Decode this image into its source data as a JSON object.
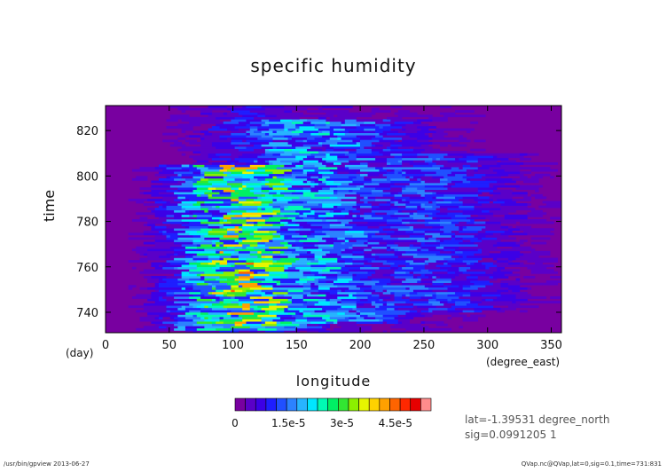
{
  "chart_data": {
    "type": "heatmap",
    "title": "specific humidity",
    "xlabel": "longitude",
    "ylabel": "time",
    "x_unit": "(degree_east)",
    "y_unit": "(day)",
    "xlim": [
      0,
      358
    ],
    "ylim": [
      731,
      831
    ],
    "x_ticks": [
      0,
      50,
      100,
      150,
      200,
      250,
      300,
      350
    ],
    "y_ticks": [
      740,
      760,
      780,
      800,
      820
    ],
    "colorbar": {
      "ticks": [
        "0",
        "1.5e-5",
        "3e-5",
        "4.5e-5"
      ],
      "tick_values": [
        0,
        1.5e-05,
        3e-05,
        4.5e-05
      ],
      "vmin": 0,
      "vmax": 5.5e-05,
      "colors": [
        "#7800a0",
        "#5a00c8",
        "#3c00e6",
        "#1e1eff",
        "#2050ff",
        "#2c82ff",
        "#28b4ff",
        "#00e6ff",
        "#00fab4",
        "#00f064",
        "#32e632",
        "#8cf000",
        "#e6f500",
        "#ffd200",
        "#ffa000",
        "#ff6400",
        "#ff2800",
        "#e60000",
        "#ff8c8c"
      ]
    },
    "background_level": 0,
    "description_of_field": [
      {
        "lon_center": 105,
        "lon_width": 75,
        "time_range": [
          732,
          805
        ],
        "peak": 3.2e-05
      },
      {
        "lon_center": 160,
        "lon_width": 110,
        "time_range": [
          735,
          825
        ],
        "peak": 1.8e-05
      },
      {
        "lon_center": 240,
        "lon_width": 120,
        "time_range": [
          740,
          810
        ],
        "peak": 1.2e-05
      }
    ]
  },
  "info": {
    "lat": "lat=-1.39531 degree_north",
    "sig": "sig=0.0991205 1"
  },
  "footer": {
    "left": "/usr/bin/gpview  2013-06-27",
    "right": "QVap.nc@QVap,lat=0,sig=0.1,time=731:831"
  }
}
